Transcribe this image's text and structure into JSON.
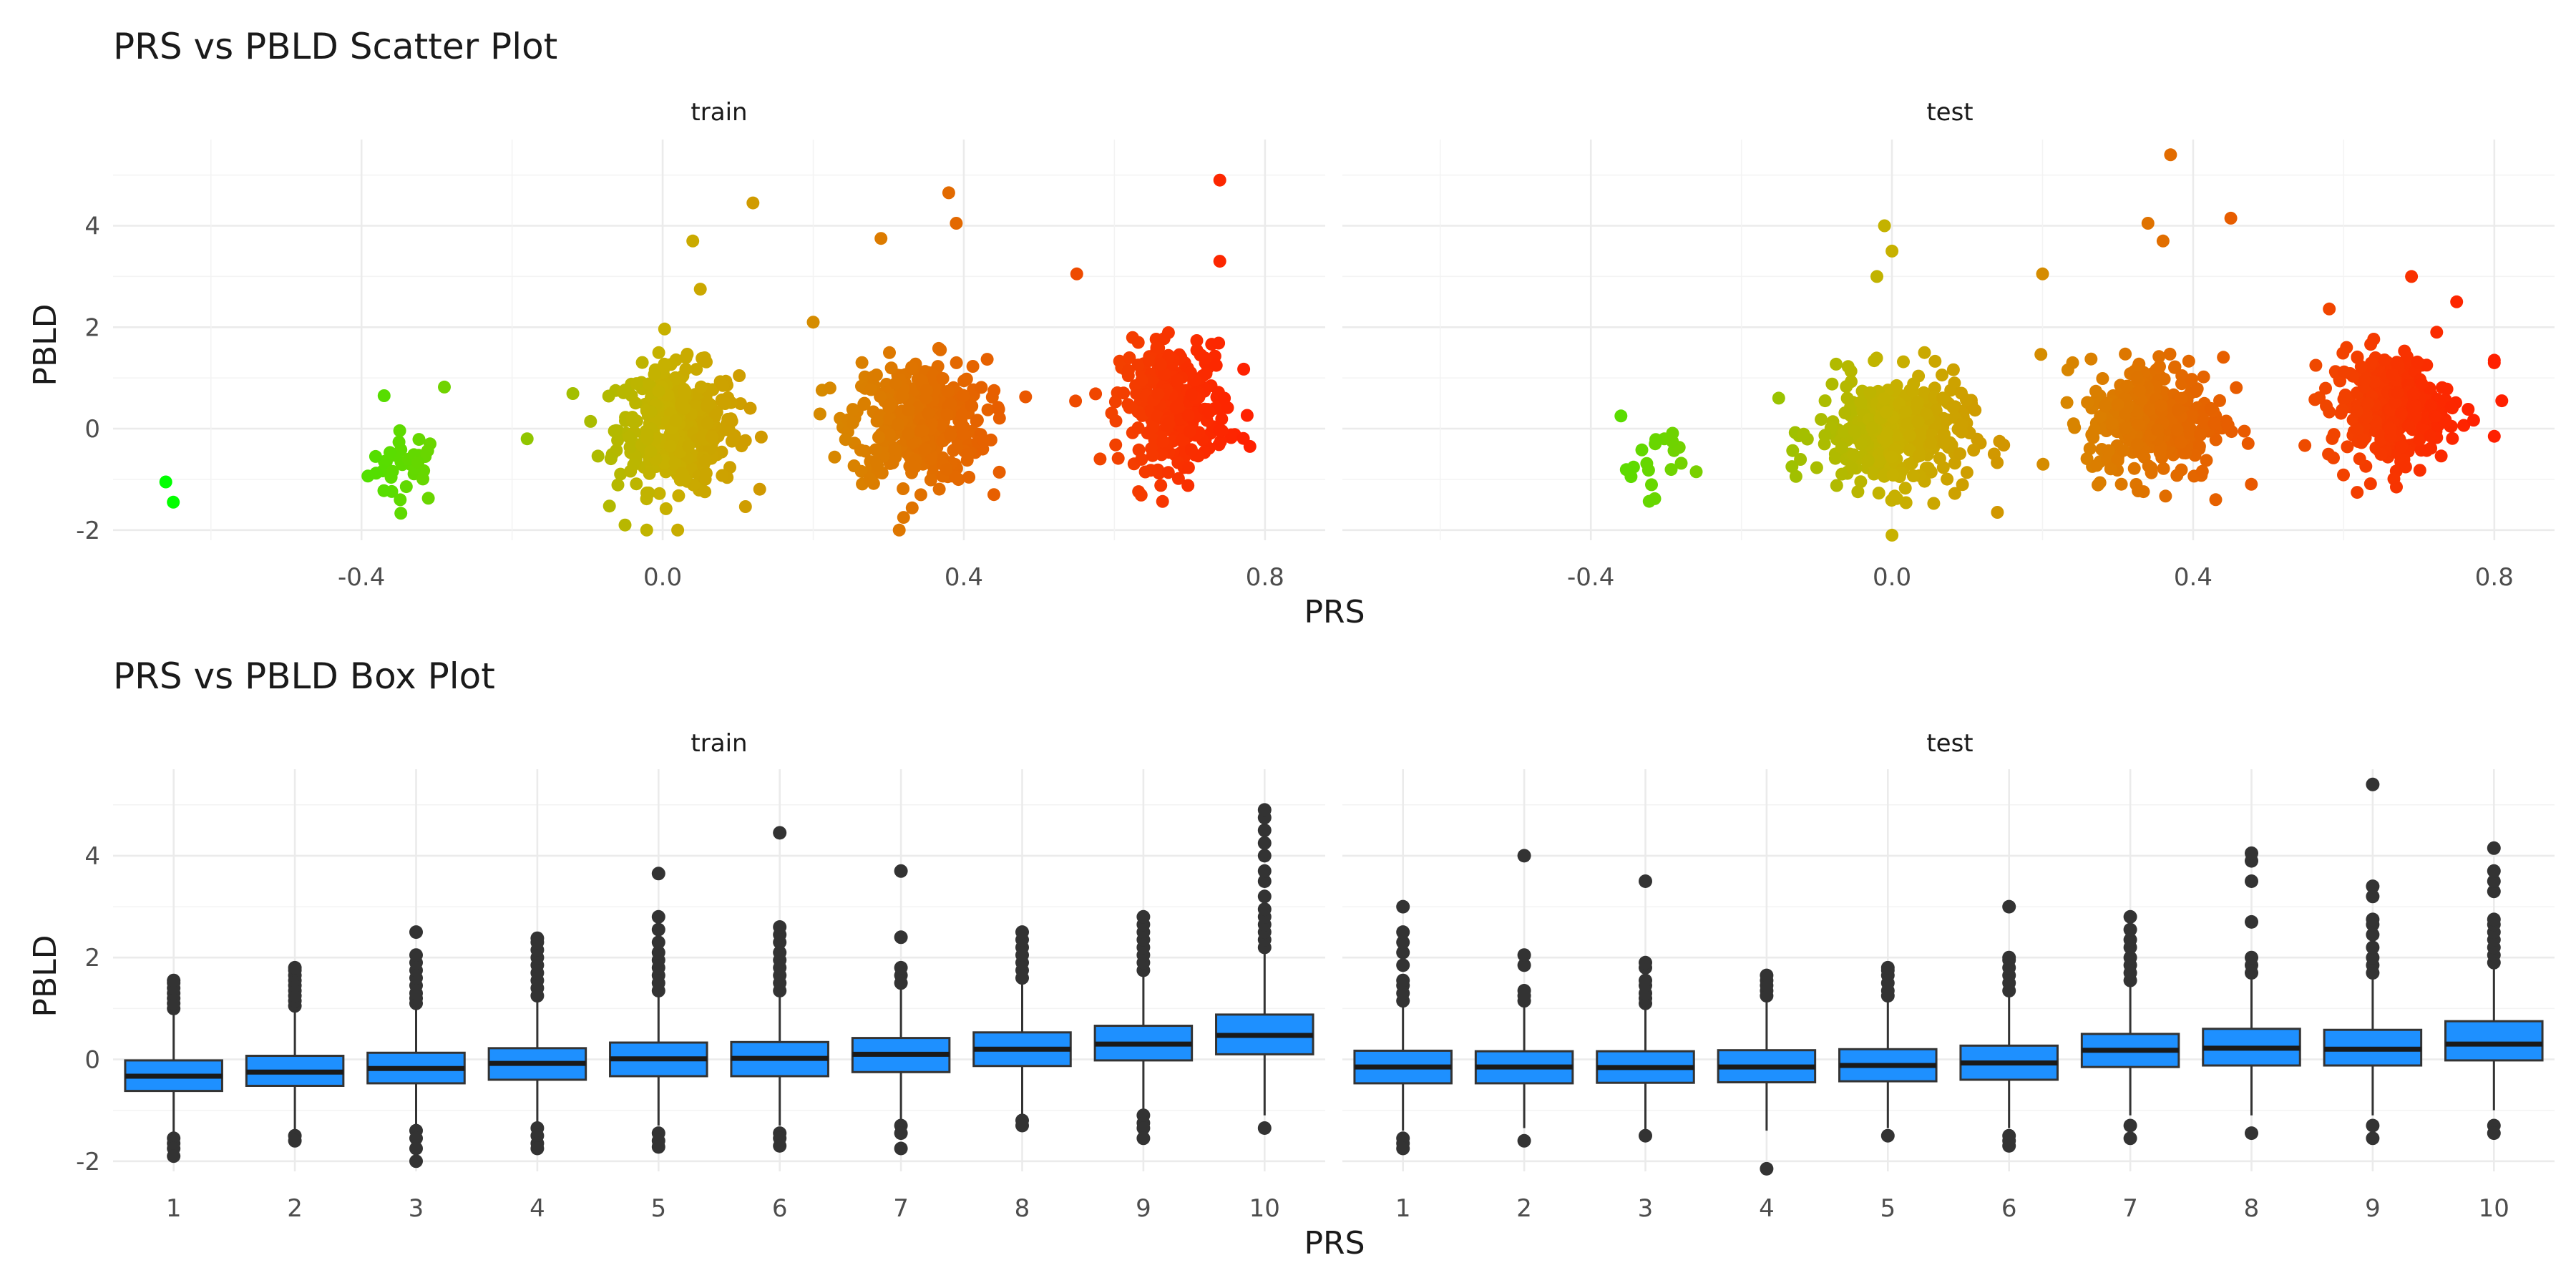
{
  "chart_data": [
    {
      "type": "scatter",
      "title": "PRS vs PBLD Scatter Plot",
      "xlabel": "PRS",
      "ylabel": "PBLD",
      "xlim": [
        -0.73,
        0.88
      ],
      "ylim": [
        -2.2,
        5.7
      ],
      "x_ticks": [
        -0.4,
        0.0,
        0.4,
        0.8
      ],
      "x_tick_labels": [
        "-0.4",
        "0.0",
        "0.4",
        "0.8"
      ],
      "y_ticks": [
        -2,
        0,
        2,
        4
      ],
      "y_tick_labels": [
        "-2",
        "0",
        "2",
        "4"
      ],
      "color_scale": {
        "low": "#00ff00",
        "mid": "#c7b100",
        "high": "#ff2000"
      },
      "grid": true,
      "panels": [
        {
          "name": "train",
          "clusters": [
            {
              "x_center": -0.34,
              "x_spread": 0.025,
              "y_center": -0.75,
              "y_spread": 0.35,
              "n": 35
            },
            {
              "x_center": 0.02,
              "x_spread": 0.04,
              "y_center": 0.0,
              "y_spread": 0.6,
              "n": 420
            },
            {
              "x_center": 0.34,
              "x_spread": 0.045,
              "y_center": 0.15,
              "y_spread": 0.6,
              "n": 380
            },
            {
              "x_center": 0.68,
              "x_spread": 0.035,
              "y_center": 0.45,
              "y_spread": 0.6,
              "n": 330
            }
          ],
          "points": [
            {
              "x": -0.66,
              "y": -1.05
            },
            {
              "x": -0.65,
              "y": -1.45
            },
            {
              "x": -0.37,
              "y": 0.65
            },
            {
              "x": -0.29,
              "y": 0.82
            },
            {
              "x": -0.18,
              "y": -0.2
            },
            {
              "x": 0.12,
              "y": 4.45
            },
            {
              "x": 0.04,
              "y": 3.7
            },
            {
              "x": 0.29,
              "y": 3.75
            },
            {
              "x": 0.38,
              "y": 4.65
            },
            {
              "x": 0.39,
              "y": 4.05
            },
            {
              "x": 0.55,
              "y": 3.05
            },
            {
              "x": 0.74,
              "y": 4.9
            },
            {
              "x": 0.74,
              "y": 3.3
            },
            {
              "x": 0.78,
              "y": -0.35
            },
            {
              "x": 0.05,
              "y": 2.75
            },
            {
              "x": 0.2,
              "y": 2.1
            },
            {
              "x": 0.02,
              "y": -2.0
            },
            {
              "x": 0.32,
              "y": -1.75
            },
            {
              "x": 0.44,
              "y": -1.3
            },
            {
              "x": -0.05,
              "y": -1.9
            }
          ]
        },
        {
          "name": "test",
          "clusters": [
            {
              "x_center": -0.32,
              "x_spread": 0.025,
              "y_center": -0.6,
              "y_spread": 0.35,
              "n": 18
            },
            {
              "x_center": 0.0,
              "x_spread": 0.05,
              "y_center": -0.1,
              "y_spread": 0.55,
              "n": 360
            },
            {
              "x_center": 0.35,
              "x_spread": 0.045,
              "y_center": 0.2,
              "y_spread": 0.6,
              "n": 320
            },
            {
              "x_center": 0.66,
              "x_spread": 0.04,
              "y_center": 0.4,
              "y_spread": 0.55,
              "n": 300
            }
          ],
          "points": [
            {
              "x": -0.36,
              "y": 0.25
            },
            {
              "x": -0.26,
              "y": -0.85
            },
            {
              "x": -0.01,
              "y": 4.0
            },
            {
              "x": 0.0,
              "y": 3.5
            },
            {
              "x": -0.02,
              "y": 3.0
            },
            {
              "x": 0.2,
              "y": 3.05
            },
            {
              "x": 0.37,
              "y": 5.4
            },
            {
              "x": 0.34,
              "y": 4.05
            },
            {
              "x": 0.36,
              "y": 3.7
            },
            {
              "x": 0.45,
              "y": 4.15
            },
            {
              "x": 0.69,
              "y": 3.0
            },
            {
              "x": 0.8,
              "y": 1.3
            },
            {
              "x": 0.8,
              "y": 1.35
            },
            {
              "x": 0.81,
              "y": 0.55
            },
            {
              "x": 0.8,
              "y": -0.15
            },
            {
              "x": 0.75,
              "y": 2.5
            },
            {
              "x": 0.0,
              "y": -2.1
            },
            {
              "x": 0.14,
              "y": -1.65
            },
            {
              "x": 0.43,
              "y": -1.4
            },
            {
              "x": 0.67,
              "y": -1.15
            }
          ]
        }
      ]
    },
    {
      "type": "box",
      "title": "PRS vs PBLD Box Plot",
      "xlabel": "PRS",
      "ylabel": "PBLD",
      "categories": [
        "1",
        "2",
        "3",
        "4",
        "5",
        "6",
        "7",
        "8",
        "9",
        "10"
      ],
      "ylim": [
        -2.2,
        5.7
      ],
      "y_ticks": [
        -2,
        0,
        2,
        4
      ],
      "y_tick_labels": [
        "-2",
        "0",
        "2",
        "4"
      ],
      "box_color": "#1e90ff",
      "grid": true,
      "panels": [
        {
          "name": "train",
          "boxes": [
            {
              "q1": -0.62,
              "median": -0.33,
              "q3": -0.02,
              "lower": -1.5,
              "upper": 0.9,
              "outliers": [
                1.0,
                1.1,
                1.2,
                1.3,
                1.4,
                1.5,
                1.55,
                -1.55,
                -1.65,
                -1.75,
                -1.9
              ]
            },
            {
              "q1": -0.52,
              "median": -0.25,
              "q3": 0.07,
              "lower": -1.4,
              "upper": 1.0,
              "outliers": [
                1.05,
                1.15,
                1.25,
                1.35,
                1.45,
                1.55,
                1.65,
                1.75,
                1.8,
                -1.5,
                -1.6
              ]
            },
            {
              "q1": -0.47,
              "median": -0.18,
              "q3": 0.13,
              "lower": -1.35,
              "upper": 1.05,
              "outliers": [
                1.1,
                1.2,
                1.3,
                1.45,
                1.6,
                1.75,
                1.9,
                2.05,
                2.5,
                -1.4,
                -1.55,
                -1.75,
                -2.0
              ]
            },
            {
              "q1": -0.4,
              "median": -0.08,
              "q3": 0.22,
              "lower": -1.25,
              "upper": 1.15,
              "outliers": [
                1.25,
                1.4,
                1.55,
                1.7,
                1.85,
                2.0,
                2.15,
                2.3,
                2.38,
                -1.35,
                -1.5,
                -1.65,
                -1.75
              ]
            },
            {
              "q1": -0.33,
              "median": 0.01,
              "q3": 0.33,
              "lower": -1.3,
              "upper": 1.3,
              "outliers": [
                1.35,
                1.5,
                1.65,
                1.8,
                1.95,
                2.1,
                2.3,
                2.55,
                2.8,
                3.65,
                -1.45,
                -1.6,
                -1.72
              ]
            },
            {
              "q1": -0.33,
              "median": 0.02,
              "q3": 0.34,
              "lower": -1.3,
              "upper": 1.3,
              "outliers": [
                1.35,
                1.5,
                1.65,
                1.8,
                1.95,
                2.1,
                2.3,
                2.45,
                2.6,
                4.45,
                -1.45,
                -1.55,
                -1.7
              ]
            },
            {
              "q1": -0.25,
              "median": 0.1,
              "q3": 0.42,
              "lower": -1.2,
              "upper": 1.4,
              "outliers": [
                1.5,
                1.65,
                1.8,
                2.4,
                3.7,
                -1.3,
                -1.45,
                -1.75
              ]
            },
            {
              "q1": -0.13,
              "median": 0.2,
              "q3": 0.53,
              "lower": -1.1,
              "upper": 1.5,
              "outliers": [
                1.6,
                1.75,
                1.9,
                2.05,
                2.2,
                2.35,
                2.5,
                -1.2,
                -1.3
              ]
            },
            {
              "q1": -0.02,
              "median": 0.3,
              "q3": 0.66,
              "lower": -1.0,
              "upper": 1.65,
              "outliers": [
                1.75,
                1.9,
                2.05,
                2.2,
                2.35,
                2.5,
                2.65,
                2.8,
                -1.1,
                -1.25,
                -1.35,
                -1.55
              ]
            },
            {
              "q1": 0.1,
              "median": 0.47,
              "q3": 0.88,
              "lower": -1.1,
              "upper": 2.1,
              "outliers": [
                2.2,
                2.35,
                2.5,
                2.65,
                2.8,
                2.95,
                3.2,
                3.5,
                3.7,
                4.0,
                4.25,
                4.5,
                4.75,
                4.9,
                -1.35
              ]
            }
          ]
        },
        {
          "name": "test",
          "boxes": [
            {
              "q1": -0.47,
              "median": -0.15,
              "q3": 0.17,
              "lower": -1.4,
              "upper": 1.05,
              "outliers": [
                1.15,
                1.3,
                1.45,
                1.55,
                1.85,
                2.1,
                2.3,
                2.5,
                3.0,
                -1.55,
                -1.65,
                -1.75
              ]
            },
            {
              "q1": -0.47,
              "median": -0.15,
              "q3": 0.16,
              "lower": -1.35,
              "upper": 1.05,
              "outliers": [
                1.15,
                1.25,
                1.35,
                1.85,
                2.05,
                4.0,
                -1.6
              ]
            },
            {
              "q1": -0.46,
              "median": -0.16,
              "q3": 0.16,
              "lower": -1.4,
              "upper": 1.0,
              "outliers": [
                1.1,
                1.2,
                1.3,
                1.45,
                1.55,
                1.8,
                1.9,
                3.5,
                -1.5
              ]
            },
            {
              "q1": -0.45,
              "median": -0.15,
              "q3": 0.18,
              "lower": -1.4,
              "upper": 1.15,
              "outliers": [
                1.25,
                1.35,
                1.45,
                1.55,
                1.65,
                -2.15
              ]
            },
            {
              "q1": -0.43,
              "median": -0.12,
              "q3": 0.2,
              "lower": -1.35,
              "upper": 1.15,
              "outliers": [
                1.25,
                1.35,
                1.5,
                1.65,
                1.75,
                1.8,
                -1.5
              ]
            },
            {
              "q1": -0.4,
              "median": -0.07,
              "q3": 0.27,
              "lower": -1.35,
              "upper": 1.25,
              "outliers": [
                1.35,
                1.5,
                1.65,
                1.8,
                1.95,
                2.0,
                3.0,
                -1.5,
                -1.6,
                -1.7
              ]
            },
            {
              "q1": -0.15,
              "median": 0.18,
              "q3": 0.5,
              "lower": -1.1,
              "upper": 1.45,
              "outliers": [
                1.55,
                1.7,
                1.85,
                2.0,
                2.2,
                2.35,
                2.55,
                2.8,
                -1.3,
                -1.55
              ]
            },
            {
              "q1": -0.12,
              "median": 0.22,
              "q3": 0.6,
              "lower": -1.1,
              "upper": 1.6,
              "outliers": [
                1.7,
                1.85,
                2.0,
                2.7,
                3.5,
                3.9,
                4.05,
                -1.45
              ]
            },
            {
              "q1": -0.12,
              "median": 0.2,
              "q3": 0.58,
              "lower": -1.1,
              "upper": 1.6,
              "outliers": [
                1.7,
                1.85,
                2.0,
                2.2,
                2.45,
                2.65,
                2.75,
                3.2,
                3.4,
                5.4,
                -1.3,
                -1.55
              ]
            },
            {
              "q1": -0.02,
              "median": 0.3,
              "q3": 0.75,
              "lower": -1.0,
              "upper": 1.8,
              "outliers": [
                1.9,
                2.05,
                2.2,
                2.35,
                2.5,
                2.65,
                2.75,
                3.3,
                3.5,
                3.7,
                4.15,
                -1.3,
                -1.45
              ]
            }
          ]
        }
      ]
    }
  ]
}
